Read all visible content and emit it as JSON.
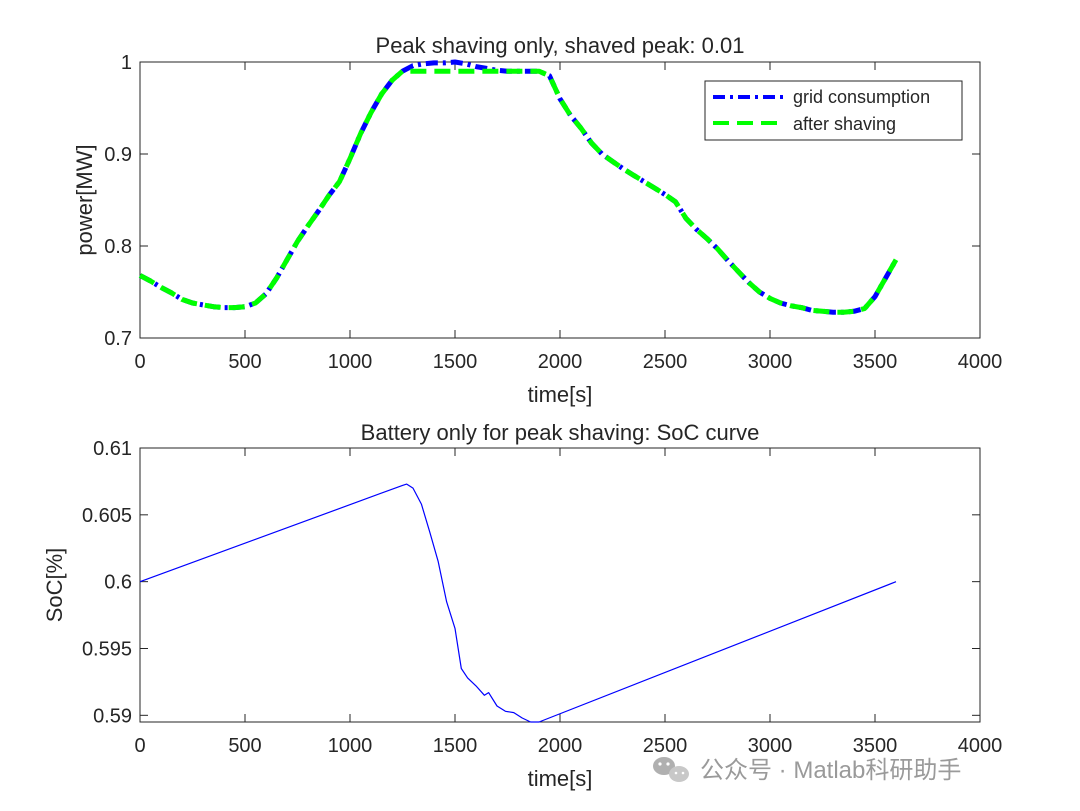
{
  "chart_data": [
    {
      "type": "line",
      "title": "Peak shaving only, shaved peak: 0.01",
      "xlabel": "time[s]",
      "ylabel": "power[MW]",
      "xlim": [
        0,
        4000
      ],
      "ylim": [
        0.7,
        1.0
      ],
      "xticks": [
        0,
        500,
        1000,
        1500,
        2000,
        2500,
        3000,
        3500,
        4000
      ],
      "yticks": [
        0.7,
        0.8,
        0.9,
        1.0
      ],
      "xtick_labels": [
        "0",
        "500",
        "1000",
        "1500",
        "2000",
        "2500",
        "3000",
        "3500",
        "4000"
      ],
      "ytick_labels": [
        "0.7",
        "0.8",
        "0.9",
        "1"
      ],
      "grid": false,
      "legend_position": "top-right",
      "series": [
        {
          "name": "grid consumption",
          "color": "#0000ff",
          "style": "dash-dot",
          "x": [
            0,
            50,
            100,
            150,
            200,
            250,
            300,
            350,
            400,
            450,
            500,
            550,
            600,
            650,
            700,
            750,
            800,
            850,
            900,
            950,
            1000,
            1050,
            1100,
            1150,
            1200,
            1250,
            1300,
            1350,
            1400,
            1450,
            1500,
            1550,
            1600,
            1650,
            1700,
            1750,
            1800,
            1850,
            1900,
            1950,
            2000,
            2050,
            2100,
            2150,
            2200,
            2250,
            2300,
            2350,
            2400,
            2450,
            2500,
            2550,
            2600,
            2650,
            2700,
            2750,
            2800,
            2850,
            2900,
            2950,
            3000,
            3050,
            3100,
            3150,
            3200,
            3250,
            3300,
            3350,
            3400,
            3450,
            3500,
            3550,
            3600
          ],
          "y": [
            0.768,
            0.762,
            0.755,
            0.749,
            0.742,
            0.738,
            0.736,
            0.734,
            0.733,
            0.733,
            0.734,
            0.738,
            0.748,
            0.765,
            0.785,
            0.805,
            0.822,
            0.838,
            0.855,
            0.87,
            0.895,
            0.922,
            0.945,
            0.965,
            0.98,
            0.99,
            0.996,
            0.998,
            0.999,
            0.999,
            1.0,
            0.998,
            0.995,
            0.993,
            0.991,
            0.99,
            0.99,
            0.99,
            0.99,
            0.985,
            0.96,
            0.942,
            0.928,
            0.912,
            0.9,
            0.892,
            0.884,
            0.877,
            0.87,
            0.863,
            0.856,
            0.848,
            0.83,
            0.818,
            0.808,
            0.797,
            0.784,
            0.772,
            0.76,
            0.75,
            0.743,
            0.738,
            0.735,
            0.733,
            0.73,
            0.729,
            0.728,
            0.728,
            0.729,
            0.732,
            0.745,
            0.765,
            0.785
          ]
        },
        {
          "name": "after shaving",
          "color": "#00ff00",
          "style": "dashed",
          "x": [
            0,
            50,
            100,
            150,
            200,
            250,
            300,
            350,
            400,
            450,
            500,
            550,
            600,
            650,
            700,
            750,
            800,
            850,
            900,
            950,
            1000,
            1050,
            1100,
            1150,
            1200,
            1250,
            1300,
            1350,
            1400,
            1450,
            1500,
            1550,
            1600,
            1650,
            1700,
            1750,
            1800,
            1850,
            1900,
            1950,
            2000,
            2050,
            2100,
            2150,
            2200,
            2250,
            2300,
            2350,
            2400,
            2450,
            2500,
            2550,
            2600,
            2650,
            2700,
            2750,
            2800,
            2850,
            2900,
            2950,
            3000,
            3050,
            3100,
            3150,
            3200,
            3250,
            3300,
            3350,
            3400,
            3450,
            3500,
            3550,
            3600
          ],
          "y": [
            0.768,
            0.762,
            0.755,
            0.749,
            0.742,
            0.738,
            0.736,
            0.734,
            0.733,
            0.733,
            0.734,
            0.738,
            0.748,
            0.765,
            0.785,
            0.805,
            0.822,
            0.838,
            0.855,
            0.87,
            0.895,
            0.922,
            0.945,
            0.965,
            0.98,
            0.99,
            0.99,
            0.99,
            0.99,
            0.99,
            0.99,
            0.99,
            0.99,
            0.99,
            0.99,
            0.99,
            0.99,
            0.99,
            0.99,
            0.985,
            0.96,
            0.942,
            0.928,
            0.912,
            0.9,
            0.892,
            0.884,
            0.877,
            0.87,
            0.863,
            0.856,
            0.848,
            0.83,
            0.818,
            0.808,
            0.797,
            0.784,
            0.772,
            0.76,
            0.75,
            0.743,
            0.738,
            0.735,
            0.733,
            0.73,
            0.729,
            0.728,
            0.728,
            0.729,
            0.732,
            0.745,
            0.765,
            0.785
          ]
        }
      ]
    },
    {
      "type": "line",
      "title": "Battery only for peak shaving: SoC curve",
      "xlabel": "time[s]",
      "ylabel": "SoC[%]",
      "xlim": [
        0,
        4000
      ],
      "ylim": [
        0.5895,
        0.61
      ],
      "xticks": [
        0,
        500,
        1000,
        1500,
        2000,
        2500,
        3000,
        3500,
        4000
      ],
      "yticks": [
        0.59,
        0.595,
        0.6,
        0.605,
        0.61
      ],
      "xtick_labels": [
        "0",
        "500",
        "1000",
        "1500",
        "2000",
        "2500",
        "3000",
        "3500",
        "4000"
      ],
      "ytick_labels": [
        "0.59",
        "0.595",
        "0.6",
        "0.605",
        "0.61"
      ],
      "grid": false,
      "series": [
        {
          "name": "SoC",
          "color": "#0000ff",
          "style": "solid",
          "x": [
            0,
            1250,
            1270,
            1300,
            1340,
            1380,
            1420,
            1460,
            1500,
            1530,
            1560,
            1600,
            1640,
            1660,
            1700,
            1740,
            1780,
            1820,
            1860,
            1900,
            3600
          ],
          "y": [
            0.6,
            0.6072,
            0.6073,
            0.607,
            0.6058,
            0.6037,
            0.6015,
            0.5985,
            0.5965,
            0.5935,
            0.5928,
            0.5922,
            0.5915,
            0.5917,
            0.5907,
            0.5903,
            0.5902,
            0.5898,
            0.5895,
            0.5895,
            0.6
          ]
        }
      ]
    }
  ],
  "watermark": {
    "text": "公众号 · Matlab科研助手",
    "icon": "wechat-icon"
  }
}
